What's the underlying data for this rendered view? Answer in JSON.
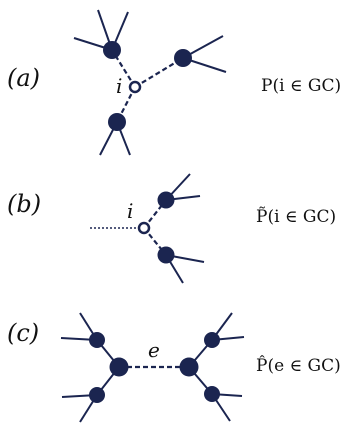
{
  "panels": [
    {
      "label": "(a)",
      "node_label": "i",
      "formula": "P(i ∈ GC)"
    },
    {
      "label": "(b)",
      "node_label": "i",
      "formula": "P̃(i ∈ GC)"
    },
    {
      "label": "(c)",
      "node_label": "e",
      "formula": "P̂(e ∈ GC)"
    }
  ],
  "colors": {
    "node_fill": "#1b2550",
    "edge": "#1b2550",
    "text": "#111111",
    "background": "#ffffff"
  }
}
